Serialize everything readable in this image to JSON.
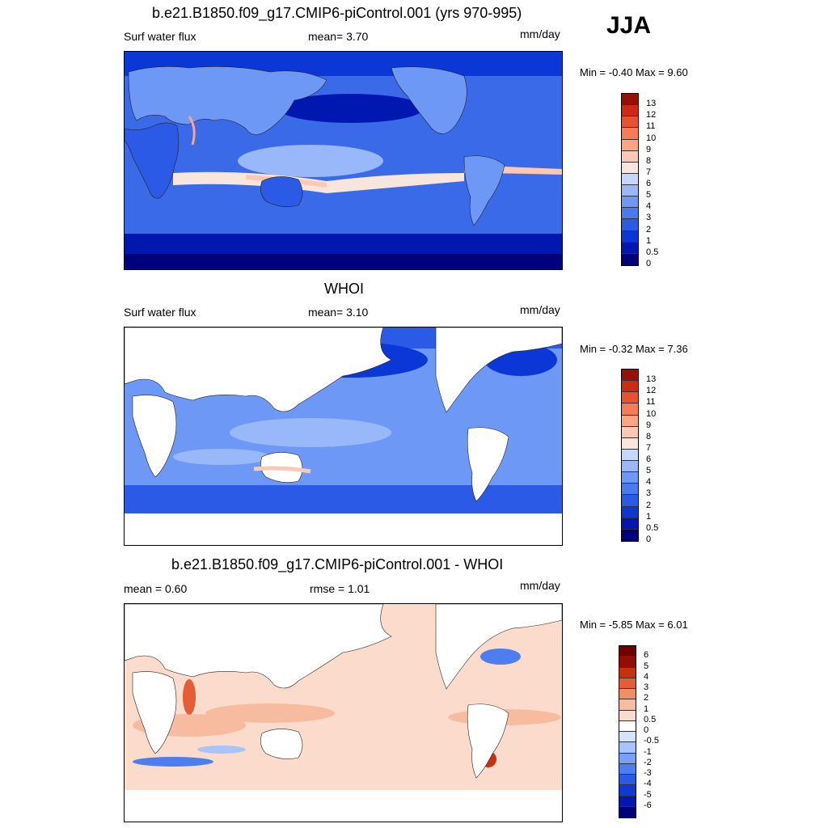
{
  "season": "JJA",
  "colors": {
    "abs_scale": [
      "#00007a",
      "#0018b0",
      "#0a37d6",
      "#2a5ae6",
      "#4a7af0",
      "#6e98f5",
      "#98b8fa",
      "#c4d8fc",
      "#f8e6dc",
      "#fcc8b2",
      "#fca582",
      "#f57c56",
      "#e8522e",
      "#cc2a12",
      "#961006"
    ],
    "diff_scale": [
      "#00007a",
      "#0018b0",
      "#1038d8",
      "#2c5ae6",
      "#4e7df0",
      "#78a0f6",
      "#a8c4fa",
      "#d4e4fd",
      "#ffffff",
      "#fbdccc",
      "#f7bca0",
      "#f08e68",
      "#e45d36",
      "#c8300f",
      "#960d04",
      "#6e0000"
    ],
    "land": "#ffffff"
  },
  "panels": [
    {
      "title": "b.e21.B1850.f09_g17.CMIP6-piControl.001 (yrs 970-995)",
      "left_label": "Surf water flux",
      "center_label": "mean=   3.70",
      "units": "mm/day",
      "minmax": "Min =  -0.40 Max =    9.60",
      "colorbar_labels": [
        "13",
        "12",
        "11",
        "10",
        "9",
        "8",
        "7",
        "6",
        "5",
        "4",
        "3",
        "2",
        "1",
        "0.5",
        "0"
      ]
    },
    {
      "title": "WHOI",
      "left_label": "Surf water flux",
      "center_label": "mean=   3.10",
      "units": "mm/day",
      "minmax": "Min =  -0.32 Max =    7.36",
      "colorbar_labels": [
        "13",
        "12",
        "11",
        "10",
        "9",
        "8",
        "7",
        "6",
        "5",
        "4",
        "3",
        "2",
        "1",
        "0.5",
        "0"
      ]
    },
    {
      "title": "b.e21.B1850.f09_g17.CMIP6-piControl.001 - WHOI",
      "left_label": "mean =   0.60",
      "center_label": "rmse =   1.01",
      "units": "mm/day",
      "minmax": "Min =  -5.85 Max =    6.01",
      "colorbar_labels": [
        "6",
        "5",
        "4",
        "3",
        "2",
        "1",
        "0.5",
        "0",
        "-0.5",
        "-1",
        "-2",
        "-3",
        "-4",
        "-5",
        "-6"
      ]
    }
  ]
}
